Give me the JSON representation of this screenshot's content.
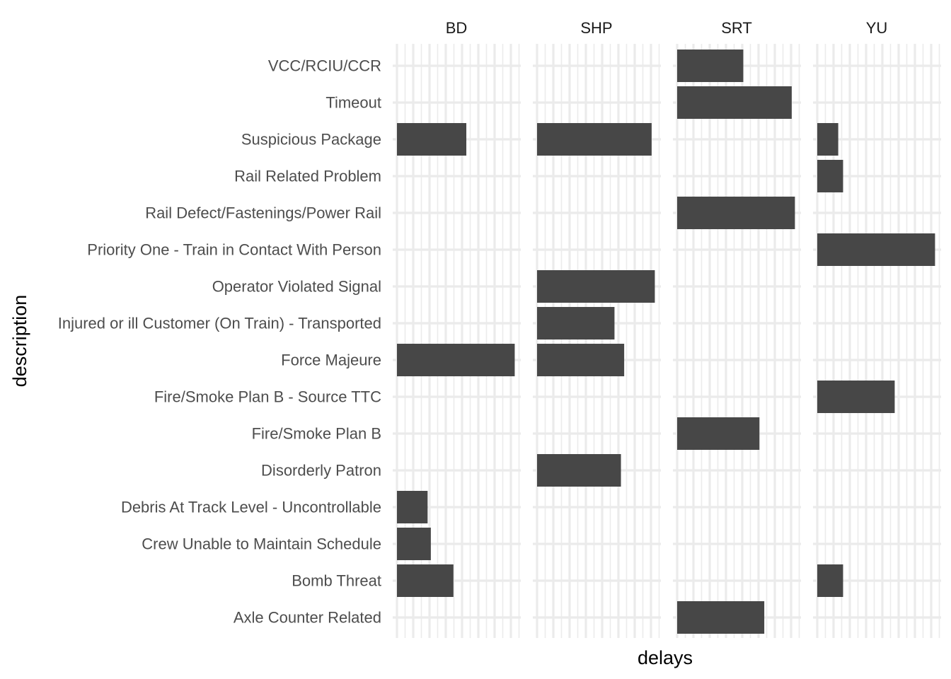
{
  "chart_data": {
    "type": "bar",
    "orientation": "horizontal",
    "xlabel": "delays",
    "ylabel": "description",
    "x_tick_labels_visible": false,
    "grid": true,
    "bar_color": "#474747",
    "panels": [
      "BD",
      "SHP",
      "SRT",
      "YU"
    ],
    "categories": [
      "VCC/RCIU/CCR",
      "Timeout",
      "Suspicious Package",
      "Rail Related Problem",
      "Rail Defect/Fastenings/Power Rail",
      "Priority One - Train in Contact With Person",
      "Operator Violated Signal",
      "Injured or ill Customer (On Train) - Transported",
      "Force Majeure",
      "Fire/Smoke Plan B - Source TTC",
      "Fire/Smoke Plan B",
      "Disorderly Patron",
      "Debris At Track Level - Uncontrollable",
      "Crew Unable to Maintain Schedule",
      "Bomb Threat",
      "Axle Counter Related"
    ],
    "series": [
      {
        "name": "BD",
        "values": [
          null,
          null,
          4.3,
          null,
          null,
          null,
          null,
          null,
          7.3,
          null,
          null,
          null,
          1.9,
          2.1,
          3.5,
          null
        ]
      },
      {
        "name": "SHP",
        "values": [
          null,
          null,
          7.1,
          null,
          null,
          null,
          7.3,
          4.8,
          5.4,
          null,
          null,
          5.2,
          null,
          null,
          null,
          null
        ]
      },
      {
        "name": "SRT",
        "values": [
          4.1,
          7.1,
          null,
          null,
          7.3,
          null,
          null,
          null,
          null,
          null,
          5.1,
          null,
          null,
          null,
          null,
          5.4
        ]
      },
      {
        "name": "YU",
        "values": [
          null,
          null,
          1.3,
          1.6,
          null,
          7.3,
          null,
          null,
          null,
          4.8,
          null,
          null,
          null,
          null,
          1.6,
          null
        ]
      }
    ],
    "xlim": [
      0,
      7.5
    ]
  }
}
